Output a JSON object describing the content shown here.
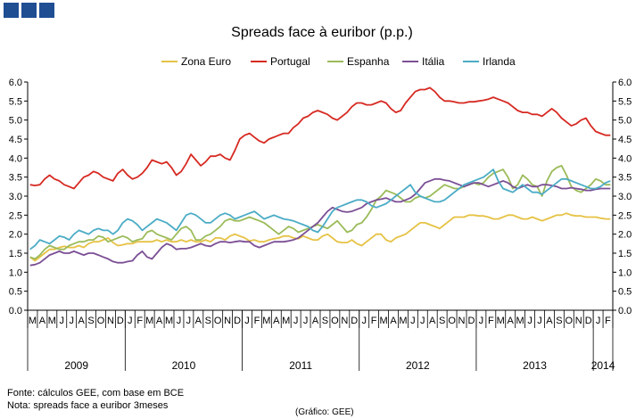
{
  "chart_data": {
    "type": "line",
    "title": "Spreads face à euribor (p.p.)",
    "xlabel": "",
    "ylabel": "",
    "ylim": [
      0,
      6
    ],
    "yticks": [
      "0.0",
      "0.5",
      "1.0",
      "1.5",
      "2.0",
      "2.5",
      "3.0",
      "3.5",
      "4.0",
      "4.5",
      "5.0",
      "5.5",
      "6.0"
    ],
    "grid": false,
    "legend_position": "top-center",
    "month_labels": [
      "M",
      "A",
      "M",
      "J",
      "J",
      "A",
      "S",
      "O",
      "N",
      "D",
      "J",
      "F",
      "M",
      "A",
      "M",
      "J",
      "J",
      "A",
      "S",
      "O",
      "N",
      "D",
      "J",
      "F",
      "M",
      "A",
      "M",
      "J",
      "J",
      "A",
      "S",
      "O",
      "N",
      "D",
      "J",
      "F",
      "M",
      "A",
      "M",
      "J",
      "J",
      "A",
      "S",
      "O",
      "N",
      "D",
      "J",
      "F",
      "M",
      "A",
      "M",
      "J",
      "J",
      "A",
      "S",
      "O",
      "N",
      "D",
      "J",
      "F"
    ],
    "years": [
      {
        "label": "2009",
        "start": 0,
        "end": 10
      },
      {
        "label": "2010",
        "start": 10,
        "end": 22
      },
      {
        "label": "2011",
        "start": 22,
        "end": 34
      },
      {
        "label": "2012",
        "start": 34,
        "end": 46
      },
      {
        "label": "2013",
        "start": 46,
        "end": 58
      },
      {
        "label": "2014",
        "start": 58,
        "end": 60
      }
    ],
    "x_points_per_month": 2,
    "series": [
      {
        "name": "Zona Euro",
        "color": "#e6c244",
        "values": [
          1.4,
          1.3,
          1.4,
          1.5,
          1.6,
          1.6,
          1.65,
          1.68,
          1.65,
          1.65,
          1.7,
          1.65,
          1.75,
          1.8,
          1.8,
          1.85,
          1.9,
          1.78,
          1.7,
          1.72,
          1.75,
          1.75,
          1.8,
          1.8,
          1.8,
          1.8,
          1.85,
          1.8,
          1.85,
          1.8,
          1.8,
          1.85,
          1.8,
          1.85,
          1.8,
          1.8,
          1.85,
          1.8,
          1.9,
          1.9,
          1.85,
          1.95,
          2.0,
          1.95,
          1.9,
          1.82,
          1.85,
          1.8,
          1.8,
          1.85,
          1.88,
          1.9,
          1.95,
          1.95,
          1.9,
          1.88,
          1.95,
          1.9,
          1.85,
          1.85,
          1.95,
          2.0,
          1.9,
          1.8,
          1.78,
          1.78,
          1.85,
          1.75,
          1.7,
          1.8,
          1.9,
          2.0,
          2.0,
          1.85,
          1.8,
          1.9,
          1.95,
          2.0,
          2.1,
          2.2,
          2.3,
          2.3,
          2.25,
          2.2,
          2.15,
          2.25,
          2.35,
          2.45,
          2.45,
          2.45,
          2.5,
          2.5,
          2.48,
          2.48,
          2.45,
          2.4,
          2.4,
          2.45,
          2.5,
          2.5,
          2.45,
          2.4,
          2.4,
          2.45,
          2.4,
          2.35,
          2.4,
          2.45,
          2.5,
          2.5,
          2.55,
          2.5,
          2.48,
          2.48,
          2.45,
          2.45,
          2.45,
          2.42,
          2.4,
          2.4
        ]
      },
      {
        "name": "Portugal",
        "color": "#d62a22",
        "values": [
          3.3,
          3.28,
          3.3,
          3.45,
          3.55,
          3.45,
          3.4,
          3.3,
          3.25,
          3.2,
          3.35,
          3.5,
          3.55,
          3.65,
          3.6,
          3.5,
          3.45,
          3.4,
          3.6,
          3.7,
          3.55,
          3.45,
          3.5,
          3.6,
          3.75,
          3.95,
          3.9,
          3.85,
          3.9,
          3.75,
          3.55,
          3.65,
          3.85,
          4.1,
          3.95,
          3.8,
          3.9,
          4.05,
          4.05,
          4.1,
          4.0,
          3.95,
          4.2,
          4.5,
          4.6,
          4.65,
          4.55,
          4.45,
          4.4,
          4.5,
          4.55,
          4.6,
          4.65,
          4.65,
          4.8,
          4.9,
          5.05,
          5.1,
          5.2,
          5.25,
          5.2,
          5.15,
          5.05,
          5.0,
          5.1,
          5.2,
          5.35,
          5.45,
          5.45,
          5.4,
          5.4,
          5.45,
          5.5,
          5.45,
          5.3,
          5.2,
          5.25,
          5.45,
          5.6,
          5.75,
          5.8,
          5.8,
          5.85,
          5.75,
          5.6,
          5.5,
          5.5,
          5.48,
          5.45,
          5.45,
          5.48,
          5.48,
          5.5,
          5.52,
          5.55,
          5.6,
          5.55,
          5.5,
          5.45,
          5.35,
          5.25,
          5.2,
          5.2,
          5.15,
          5.15,
          5.1,
          5.2,
          5.3,
          5.2,
          5.05,
          4.95,
          4.85,
          4.9,
          5.0,
          5.05,
          4.85,
          4.7,
          4.65,
          4.6,
          4.6
        ]
      },
      {
        "name": "Espanha",
        "color": "#9bbb59",
        "values": [
          1.4,
          1.35,
          1.45,
          1.6,
          1.7,
          1.65,
          1.6,
          1.6,
          1.7,
          1.75,
          1.8,
          1.8,
          1.85,
          1.85,
          1.95,
          1.92,
          1.8,
          1.85,
          1.9,
          1.95,
          1.9,
          1.8,
          1.85,
          1.88,
          2.05,
          2.1,
          2.0,
          1.95,
          1.9,
          1.85,
          2.0,
          2.15,
          2.2,
          2.1,
          1.85,
          1.85,
          1.95,
          2.0,
          2.1,
          2.2,
          2.35,
          2.4,
          2.35,
          2.35,
          2.4,
          2.45,
          2.4,
          2.35,
          2.3,
          2.2,
          2.1,
          2.0,
          2.1,
          2.2,
          2.15,
          2.05,
          2.1,
          2.15,
          2.2,
          2.25,
          2.2,
          2.15,
          2.25,
          2.35,
          2.2,
          2.05,
          2.1,
          2.25,
          2.3,
          2.45,
          2.65,
          2.9,
          3.0,
          3.15,
          3.1,
          3.05,
          2.95,
          2.85,
          2.85,
          2.95,
          3.0,
          2.95,
          3.0,
          3.1,
          3.2,
          3.3,
          3.25,
          3.2,
          3.2,
          3.25,
          3.3,
          3.35,
          3.3,
          3.35,
          3.5,
          3.6,
          3.65,
          3.7,
          3.5,
          3.2,
          3.3,
          3.55,
          3.45,
          3.3,
          3.25,
          3.0,
          3.4,
          3.65,
          3.75,
          3.8,
          3.55,
          3.25,
          3.15,
          3.1,
          3.2,
          3.3,
          3.45,
          3.4,
          3.3,
          3.3
        ]
      },
      {
        "name": "Itália",
        "color": "#7b4f95",
        "values": [
          1.18,
          1.2,
          1.25,
          1.35,
          1.45,
          1.5,
          1.55,
          1.5,
          1.5,
          1.55,
          1.5,
          1.45,
          1.5,
          1.5,
          1.45,
          1.4,
          1.35,
          1.28,
          1.25,
          1.25,
          1.28,
          1.3,
          1.45,
          1.55,
          1.4,
          1.35,
          1.5,
          1.65,
          1.75,
          1.7,
          1.6,
          1.62,
          1.62,
          1.65,
          1.7,
          1.75,
          1.7,
          1.68,
          1.75,
          1.8,
          1.8,
          1.78,
          1.8,
          1.82,
          1.8,
          1.8,
          1.7,
          1.65,
          1.7,
          1.75,
          1.8,
          1.8,
          1.8,
          1.82,
          1.85,
          1.9,
          2.0,
          2.1,
          2.2,
          2.3,
          2.45,
          2.6,
          2.7,
          2.65,
          2.6,
          2.58,
          2.6,
          2.65,
          2.7,
          2.8,
          2.85,
          2.9,
          2.92,
          2.95,
          2.9,
          2.85,
          2.85,
          2.9,
          2.95,
          3.05,
          3.2,
          3.35,
          3.4,
          3.45,
          3.45,
          3.42,
          3.4,
          3.35,
          3.3,
          3.25,
          3.3,
          3.35,
          3.35,
          3.3,
          3.25,
          3.3,
          3.35,
          3.4,
          3.35,
          3.25,
          3.2,
          3.25,
          3.3,
          3.25,
          3.25,
          3.3,
          3.3,
          3.28,
          3.25,
          3.2,
          3.2,
          3.22,
          3.2,
          3.18,
          3.15,
          3.15,
          3.18,
          3.2,
          3.2,
          3.2
        ]
      },
      {
        "name": "Irlanda",
        "color": "#4bacc6",
        "values": [
          1.6,
          1.7,
          1.85,
          1.8,
          1.75,
          1.85,
          1.95,
          1.92,
          1.85,
          2.0,
          2.1,
          2.05,
          2.0,
          2.1,
          2.15,
          2.1,
          2.1,
          2.0,
          2.1,
          2.3,
          2.4,
          2.35,
          2.25,
          2.1,
          2.2,
          2.3,
          2.4,
          2.35,
          2.3,
          2.2,
          2.1,
          2.3,
          2.5,
          2.55,
          2.5,
          2.4,
          2.3,
          2.3,
          2.4,
          2.5,
          2.55,
          2.5,
          2.4,
          2.45,
          2.5,
          2.55,
          2.6,
          2.5,
          2.4,
          2.45,
          2.5,
          2.45,
          2.4,
          2.38,
          2.35,
          2.3,
          2.25,
          2.2,
          2.1,
          2.05,
          2.2,
          2.4,
          2.6,
          2.7,
          2.75,
          2.8,
          2.85,
          2.9,
          2.9,
          2.85,
          2.75,
          2.7,
          2.75,
          2.8,
          2.9,
          3.0,
          3.1,
          3.2,
          3.3,
          3.1,
          3.0,
          2.95,
          2.9,
          2.85,
          2.85,
          2.9,
          3.0,
          3.1,
          3.2,
          3.3,
          3.35,
          3.4,
          3.45,
          3.5,
          3.6,
          3.7,
          3.4,
          3.2,
          3.15,
          3.1,
          3.2,
          3.3,
          3.2,
          3.1,
          3.1,
          3.05,
          3.15,
          3.25,
          3.35,
          3.45,
          3.45,
          3.4,
          3.35,
          3.3,
          3.25,
          3.2,
          3.2,
          3.25,
          3.35,
          3.4
        ]
      }
    ]
  },
  "header": {
    "decor_squares": [
      1,
      2,
      3
    ]
  },
  "notes": {
    "source": "Fonte: cálculos GEE, com base em BCE",
    "note": "Nota: spreads face a euribor 3meses",
    "credit": "(Gráfico: GEE)"
  }
}
